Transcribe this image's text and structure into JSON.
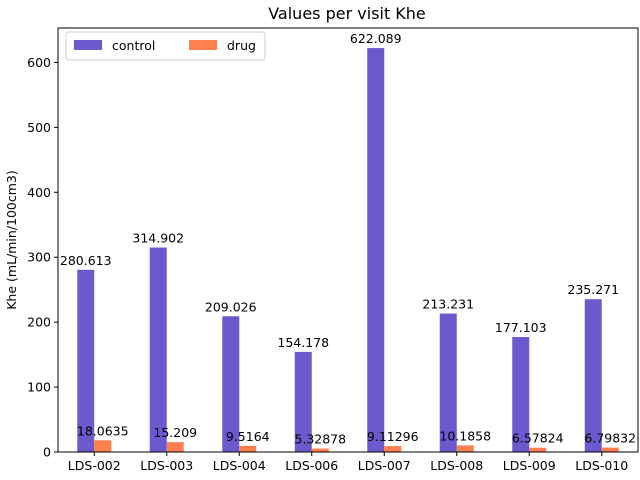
{
  "chart_data": {
    "type": "bar",
    "title": "Values per visit Khe",
    "xlabel": "",
    "ylabel": "Khe (mL/min/100cm3)",
    "categories": [
      "LDS-002",
      "LDS-003",
      "LDS-004",
      "LDS-006",
      "LDS-007",
      "LDS-008",
      "LDS-009",
      "LDS-010"
    ],
    "series": [
      {
        "name": "control",
        "color": "#6a5acd",
        "values": [
          280.613,
          314.902,
          209.026,
          154.178,
          622.089,
          213.231,
          177.103,
          235.271
        ],
        "labels": [
          "280.613",
          "314.902",
          "209.026",
          "154.178",
          "622.089",
          "213.231",
          "177.103",
          "235.271"
        ]
      },
      {
        "name": "drug",
        "color": "#ff7f50",
        "values": [
          18.0635,
          15.209,
          9.5164,
          5.32878,
          9.11296,
          10.1858,
          6.57824,
          6.79832
        ],
        "labels": [
          "18.0635",
          "15.209",
          "9.5164",
          "5.32878",
          "9.11296",
          "10.1858",
          "6.57824",
          "6.79832"
        ]
      }
    ],
    "ylim": [
      0,
      653
    ],
    "yticks": [
      "0",
      "100",
      "200",
      "300",
      "400",
      "500",
      "600"
    ],
    "grid": false,
    "legend_position": "top-left"
  }
}
